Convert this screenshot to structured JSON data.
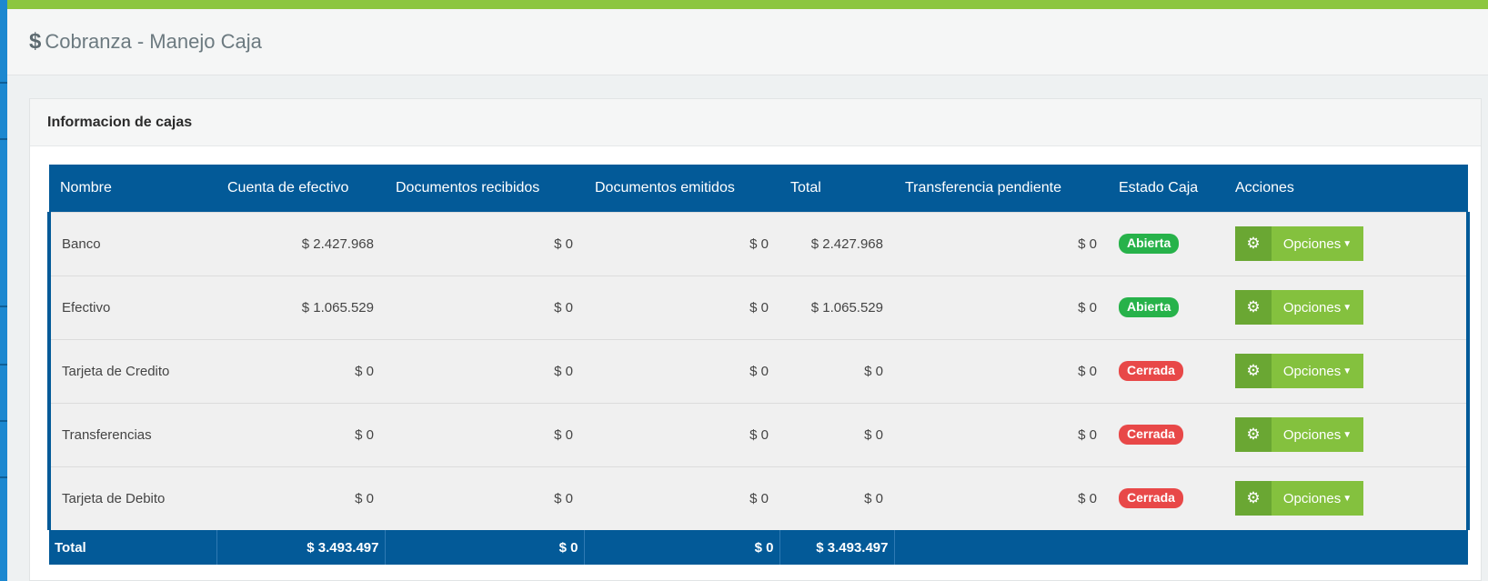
{
  "header": {
    "icon": "dollar-icon",
    "title": "Cobranza - Manejo Caja"
  },
  "panel": {
    "title": "Informacion de cajas"
  },
  "table": {
    "columns": [
      "Nombre",
      "Cuenta de efectivo",
      "Documentos recibidos",
      "Documentos emitidos",
      "Total",
      "Transferencia pendiente",
      "Estado Caja",
      "Acciones"
    ],
    "rows": [
      {
        "nombre": "Banco",
        "efectivo": "$ 2.427.968",
        "recibidos": "$ 0",
        "emitidos": "$ 0",
        "total": "$ 2.427.968",
        "pendiente": "$ 0",
        "estado": "Abierta",
        "estado_color": "#27b24a",
        "accion": "Opciones"
      },
      {
        "nombre": "Efectivo",
        "efectivo": "$ 1.065.529",
        "recibidos": "$ 0",
        "emitidos": "$ 0",
        "total": "$ 1.065.529",
        "pendiente": "$ 0",
        "estado": "Abierta",
        "estado_color": "#27b24a",
        "accion": "Opciones"
      },
      {
        "nombre": "Tarjeta de Credito",
        "efectivo": "$ 0",
        "recibidos": "$ 0",
        "emitidos": "$ 0",
        "total": "$ 0",
        "pendiente": "$ 0",
        "estado": "Cerrada",
        "estado_color": "#e84848",
        "accion": "Opciones"
      },
      {
        "nombre": "Transferencias",
        "efectivo": "$ 0",
        "recibidos": "$ 0",
        "emitidos": "$ 0",
        "total": "$ 0",
        "pendiente": "$ 0",
        "estado": "Cerrada",
        "estado_color": "#e84848",
        "accion": "Opciones"
      },
      {
        "nombre": "Tarjeta de Debito",
        "efectivo": "$ 0",
        "recibidos": "$ 0",
        "emitidos": "$ 0",
        "total": "$ 0",
        "pendiente": "$ 0",
        "estado": "Cerrada",
        "estado_color": "#e84848",
        "accion": "Opciones"
      }
    ],
    "footer": {
      "label": "Total",
      "efectivo": "$ 3.493.497",
      "recibidos": "$ 0",
      "emitidos": "$ 0",
      "total": "$ 3.493.497"
    }
  },
  "colors": {
    "accent_green": "#8cc63f",
    "table_header": "#035a98",
    "open": "#27b24a",
    "closed": "#e84848"
  }
}
